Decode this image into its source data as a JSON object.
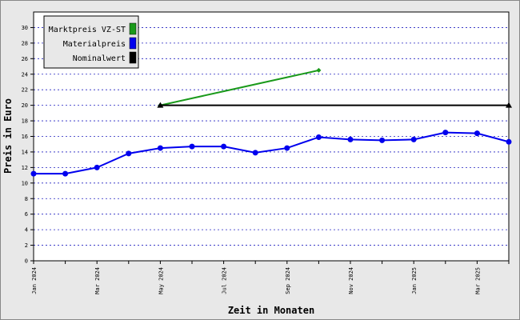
{
  "chart_data": {
    "type": "line",
    "y_label": "Preis in Euro",
    "x_label": "Zeit in Monaten",
    "categories": [
      "Jan 2024",
      null,
      "Mar 2024",
      null,
      "May 2024",
      null,
      "Jul 2024",
      null,
      "Sep 2024",
      null,
      "Nov 2024",
      null,
      "Jan 2025",
      null,
      "Mar 2025",
      null
    ],
    "series": [
      {
        "name": "Marktpreis VZ-ST",
        "color": "#1a9a1a",
        "marker": "diamond",
        "values": [
          null,
          null,
          null,
          null,
          20,
          20.9,
          21.8,
          22.7,
          23.6,
          24.5,
          null,
          null,
          null,
          null,
          null,
          null
        ]
      },
      {
        "name": "Materialpreis",
        "color": "#0000ee",
        "marker": "circle",
        "values": [
          11.2,
          11.2,
          12.0,
          13.8,
          14.5,
          14.7,
          14.7,
          13.9,
          14.5,
          15.9,
          15.6,
          15.5,
          15.6,
          16.5,
          16.4,
          15.3
        ]
      },
      {
        "name": "Nominalwert",
        "color": "#000000",
        "marker": "triangle",
        "values": [
          null,
          null,
          null,
          null,
          20,
          20,
          20,
          20,
          20,
          20,
          20,
          20,
          20,
          20,
          20,
          20
        ]
      }
    ],
    "ylim": [
      0,
      32
    ],
    "yticks": [
      0,
      2,
      4,
      6,
      8,
      10,
      12,
      14,
      16,
      18,
      20,
      22,
      24,
      26,
      28,
      30
    ],
    "grid": true,
    "legend": "upper-left"
  }
}
